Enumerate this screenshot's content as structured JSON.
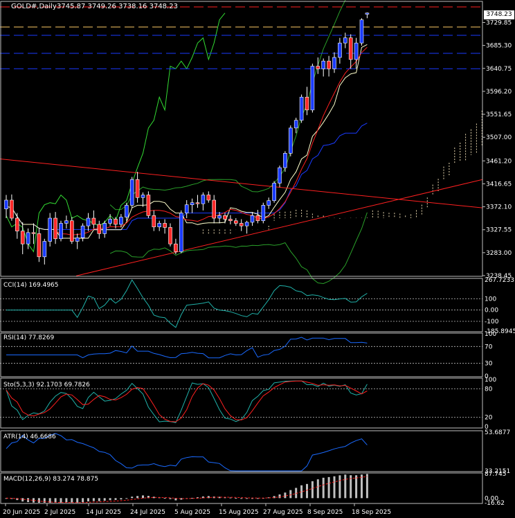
{
  "colors": {
    "background": "#000000",
    "panel_border": "#c0c0c0",
    "bull_candle": "#1a3bff",
    "bear_candle": "#ff2a2a",
    "ichimoku_cloud": "#e8d8b0",
    "bollinger": "#2aa02a",
    "chikou": "#33dd33",
    "kijun": "#1a3bff",
    "tenkan": "#ffffcc",
    "ma_red": "#ff2020",
    "trend_red": "#ff2020",
    "hline_red": "#ff2020",
    "hline_orange": "#ffcc66",
    "hline_blue": "#1a3bff",
    "cci": "#20b2aa",
    "rsi": "#1a6aff",
    "stoch_main": "#20b2aa",
    "stoch_signal": "#ff2020",
    "atr": "#1a6aff",
    "macd_hist": "#c0c0c0",
    "macd_signal": "#ff2020"
  },
  "main": {
    "title": "GOLD#,Daily",
    "ohlc": "3745.87 3749.26 3738.16 3748.23",
    "current_price": "3748.23",
    "price_labels": [
      "3729.85",
      "3685.30",
      "3640.75",
      "3596.20",
      "3551.65",
      "3507.00",
      "3461.20",
      "3416.65",
      "3372.10",
      "3327.55",
      "3283.00",
      "3238.45"
    ]
  },
  "x_labels": [
    "20 Jun 2025",
    "2 Jul 2025",
    "14 Jul 2025",
    "24 Jul 2025",
    "5 Aug 2025",
    "15 Aug 2025",
    "27 Aug 2025",
    "8 Sep 2025",
    "18 Sep 2025"
  ],
  "panels": {
    "cci": {
      "title": "CCI(14) 169.4965",
      "labels": [
        "267.7233",
        "100",
        "0.00",
        "-100",
        "-185.8945"
      ]
    },
    "rsi": {
      "title": "RSI(14) 77.8269",
      "labels": [
        "100",
        "70",
        "30",
        "0"
      ]
    },
    "stoch": {
      "title": "Sto(5,3,3) 92.1703 69.7826",
      "labels": [
        "100",
        "80",
        "20",
        "0"
      ]
    },
    "atr": {
      "title": "ATR(14) 46.6686",
      "labels": [
        "53.6877",
        "33.2151"
      ]
    },
    "macd": {
      "title": "MACD(12,26,9) 83.274 78.875",
      "labels": [
        "87.745",
        "0.00",
        "-16.62"
      ]
    }
  },
  "chart_data": {
    "type": "candlestick",
    "symbol": "GOLD#",
    "timeframe": "Daily",
    "candles": [
      [
        3368,
        3395,
        3350,
        3385
      ],
      [
        3385,
        3396,
        3345,
        3350
      ],
      [
        3350,
        3360,
        3310,
        3325
      ],
      [
        3325,
        3342,
        3280,
        3300
      ],
      [
        3300,
        3330,
        3290,
        3322
      ],
      [
        3322,
        3340,
        3300,
        3320
      ],
      [
        3320,
        3330,
        3265,
        3275
      ],
      [
        3275,
        3310,
        3260,
        3305
      ],
      [
        3305,
        3360,
        3295,
        3350
      ],
      [
        3350,
        3362,
        3300,
        3310
      ],
      [
        3310,
        3345,
        3305,
        3340
      ],
      [
        3340,
        3355,
        3330,
        3345
      ],
      [
        3345,
        3352,
        3300,
        3305
      ],
      [
        3305,
        3320,
        3290,
        3312
      ],
      [
        3312,
        3340,
        3305,
        3335
      ],
      [
        3335,
        3360,
        3325,
        3350
      ],
      [
        3350,
        3365,
        3330,
        3338
      ],
      [
        3338,
        3345,
        3310,
        3320
      ],
      [
        3320,
        3345,
        3312,
        3340
      ],
      [
        3340,
        3358,
        3335,
        3348
      ],
      [
        3348,
        3352,
        3330,
        3338
      ],
      [
        3338,
        3358,
        3332,
        3352
      ],
      [
        3352,
        3380,
        3345,
        3375
      ],
      [
        3375,
        3430,
        3370,
        3425
      ],
      [
        3425,
        3440,
        3380,
        3390
      ],
      [
        3390,
        3400,
        3372,
        3395
      ],
      [
        3395,
        3402,
        3350,
        3355
      ],
      [
        3355,
        3365,
        3325,
        3333
      ],
      [
        3333,
        3345,
        3325,
        3340
      ],
      [
        3340,
        3348,
        3320,
        3332
      ],
      [
        3332,
        3340,
        3295,
        3300
      ],
      [
        3300,
        3310,
        3280,
        3285
      ],
      [
        3285,
        3365,
        3282,
        3360
      ],
      [
        3360,
        3385,
        3350,
        3376
      ],
      [
        3376,
        3388,
        3360,
        3380
      ],
      [
        3380,
        3395,
        3370,
        3378
      ],
      [
        3378,
        3400,
        3365,
        3395
      ],
      [
        3395,
        3402,
        3380,
        3385
      ],
      [
        3385,
        3395,
        3340,
        3350
      ],
      [
        3350,
        3362,
        3340,
        3355
      ],
      [
        3355,
        3360,
        3340,
        3348
      ],
      [
        3348,
        3356,
        3338,
        3345
      ],
      [
        3345,
        3350,
        3335,
        3340
      ],
      [
        3340,
        3348,
        3325,
        3335
      ],
      [
        3335,
        3345,
        3320,
        3342
      ],
      [
        3342,
        3362,
        3335,
        3355
      ],
      [
        3355,
        3366,
        3340,
        3345
      ],
      [
        3345,
        3380,
        3340,
        3375
      ],
      [
        3375,
        3390,
        3368,
        3384
      ],
      [
        3384,
        3422,
        3380,
        3418
      ],
      [
        3418,
        3452,
        3410,
        3448
      ],
      [
        3448,
        3480,
        3440,
        3476
      ],
      [
        3476,
        3530,
        3470,
        3525
      ],
      [
        3525,
        3545,
        3515,
        3540
      ],
      [
        3540,
        3590,
        3535,
        3585
      ],
      [
        3585,
        3605,
        3550,
        3560
      ],
      [
        3560,
        3650,
        3555,
        3645
      ],
      [
        3645,
        3662,
        3630,
        3640
      ],
      [
        3640,
        3660,
        3625,
        3655
      ],
      [
        3655,
        3665,
        3625,
        3640
      ],
      [
        3640,
        3672,
        3632,
        3662
      ],
      [
        3662,
        3700,
        3650,
        3690
      ],
      [
        3690,
        3710,
        3680,
        3700
      ],
      [
        3700,
        3707,
        3640,
        3658
      ],
      [
        3658,
        3700,
        3640,
        3690
      ],
      [
        3690,
        3738,
        3685,
        3735
      ],
      [
        3745.87,
        3749.26,
        3738.16,
        3748.23
      ]
    ],
    "x_ticks": [
      "20 Jun 2025",
      "2 Jul 2025",
      "14 Jul 2025",
      "24 Jul 2025",
      "5 Aug 2025",
      "15 Aug 2025",
      "27 Aug 2025",
      "8 Sep 2025",
      "18 Sep 2025"
    ],
    "price_range": [
      3238.45,
      3752
    ],
    "horizontal_levels": {
      "red": [
        3760
      ],
      "orange": [
        3721
      ],
      "blue": [
        3705,
        3670,
        3640
      ]
    },
    "indicators": {
      "cci_range": [
        -185.8945,
        267.7233
      ],
      "cci_last": 169.4965,
      "rsi_last": 77.8269,
      "stoch_main_last": 92.1703,
      "stoch_signal_last": 69.7826,
      "atr_range": [
        33.2151,
        53.6877
      ],
      "atr_last": 46.6686,
      "macd_range": [
        -16.62,
        87.745
      ],
      "macd_last": 83.274,
      "macd_signal_last": 78.875
    }
  }
}
